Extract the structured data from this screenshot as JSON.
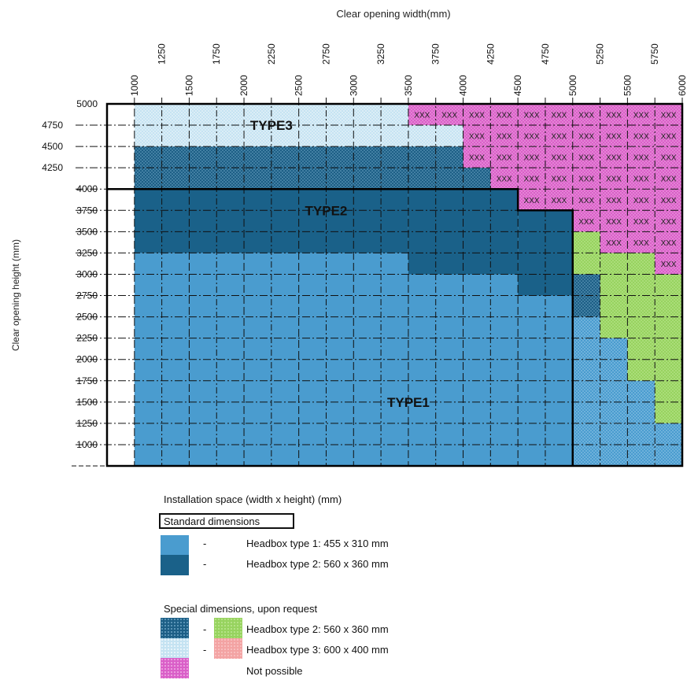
{
  "chart_data": {
    "type": "heatmap",
    "xlabel": "Clear opening width(mm)",
    "ylabel": "Clear opening height (mm)",
    "x_ticks_lower": [
      "1000",
      "1500",
      "2000",
      "2500",
      "3000",
      "3500",
      "4000",
      "4500",
      "5000",
      "5500",
      "6000"
    ],
    "x_ticks_upper": [
      "1250",
      "1750",
      "2250",
      "2750",
      "3250",
      "3750",
      "4250",
      "4750",
      "5250",
      "5750"
    ],
    "y_ticks_right": [
      "5000",
      "4000",
      "3750",
      "3500",
      "3250",
      "3000",
      "2750",
      "2500",
      "2250",
      "2000",
      "1750",
      "1500",
      "1250",
      "1000"
    ],
    "y_ticks_left": [
      "4750",
      "4500",
      "4250"
    ],
    "xlim": [
      750,
      6000
    ],
    "ylim": [
      750,
      5000
    ],
    "region_labels": [
      {
        "text": "TYPE3",
        "x": 2250,
        "y": 4750
      },
      {
        "text": "TYPE2",
        "x": 2750,
        "y": 3750
      },
      {
        "text": "TYPE1",
        "x": 3500,
        "y": 1500
      }
    ],
    "not_possible_marker": "XXX",
    "categories": [
      "std1",
      "std2",
      "sp2",
      "sp2g",
      "sp3",
      "np"
    ],
    "regions": [
      {
        "category": "std1",
        "x": [
          1000,
          5000
        ],
        "y": [
          750,
          3250
        ]
      },
      {
        "category": "std1",
        "x": [
          3500,
          4500
        ],
        "y": [
          3000,
          3250
        ]
      },
      {
        "category": "std2",
        "x": [
          1000,
          3500
        ],
        "y": [
          3250,
          4000
        ]
      },
      {
        "category": "std2",
        "x": [
          3500,
          4500
        ],
        "y": [
          3000,
          4000
        ]
      },
      {
        "category": "std2",
        "x": [
          4500,
          5000
        ],
        "y": [
          2750,
          3750
        ]
      },
      {
        "category": "std1",
        "x": [
          4500,
          5000
        ],
        "y": [
          2500,
          2750
        ]
      },
      {
        "category": "sp2",
        "x": [
          1000,
          4000
        ],
        "y": [
          4000,
          4500
        ]
      },
      {
        "category": "sp2",
        "x": [
          4000,
          4250
        ],
        "y": [
          4000,
          4250
        ]
      },
      {
        "category": "sp3",
        "x": [
          1000,
          3500
        ],
        "y": [
          4500,
          5000
        ]
      },
      {
        "category": "sp3",
        "x": [
          3500,
          4000
        ],
        "y": [
          4500,
          4750
        ]
      },
      {
        "category": "sp2",
        "x": [
          5000,
          5250
        ],
        "y": [
          2500,
          3000
        ]
      },
      {
        "category": "sp2g",
        "x": [
          5000,
          5250
        ],
        "y": [
          3000,
          3500
        ]
      },
      {
        "category": "sp2g",
        "x": [
          5250,
          5500
        ],
        "y": [
          2250,
          3250
        ]
      },
      {
        "category": "sp2g",
        "x": [
          5500,
          5750
        ],
        "y": [
          1750,
          3250
        ]
      },
      {
        "category": "sp2g",
        "x": [
          5750,
          6000
        ],
        "y": [
          1250,
          3000
        ]
      },
      {
        "category": "sp3",
        "x": [
          5000,
          5250
        ],
        "y": [
          750,
          2500
        ]
      },
      {
        "category": "sp3",
        "x": [
          5250,
          5500
        ],
        "y": [
          750,
          2250
        ]
      },
      {
        "category": "sp3",
        "x": [
          5500,
          5750
        ],
        "y": [
          750,
          1750
        ]
      },
      {
        "category": "sp3",
        "x": [
          5750,
          6000
        ],
        "y": [
          750,
          1250
        ]
      },
      {
        "category": "np",
        "x": [
          3500,
          4000
        ],
        "y": [
          4750,
          5000
        ]
      },
      {
        "category": "np",
        "x": [
          4000,
          4250
        ],
        "y": [
          4250,
          5000
        ]
      },
      {
        "category": "np",
        "x": [
          4250,
          4500
        ],
        "y": [
          4000,
          5000
        ]
      },
      {
        "category": "np",
        "x": [
          4500,
          5000
        ],
        "y": [
          3750,
          5000
        ]
      },
      {
        "category": "np",
        "x": [
          5000,
          5250
        ],
        "y": [
          3500,
          5000
        ]
      },
      {
        "category": "np",
        "x": [
          5250,
          5750
        ],
        "y": [
          3250,
          5000
        ]
      },
      {
        "category": "np",
        "x": [
          5750,
          6000
        ],
        "y": [
          3000,
          5000
        ]
      }
    ],
    "colors": {
      "std1": "#4a9ccf",
      "std2": "#1a6189",
      "sp2": "#1d5f86",
      "sp2g": "#97d35f",
      "sp3": "#c5e3f2",
      "sp3pink": "#f3a3a3",
      "np": "#da5fc8",
      "grid": "#111111"
    }
  },
  "legend": {
    "title": "Installation space (width x height) (mm)",
    "standard_title": "Standard dimensions",
    "special_title": "Special dimensions, upon request",
    "dash": "-",
    "items": {
      "type1": "Headbox type 1: 455 x 310 mm",
      "type2": "Headbox type 2: 560  x 360 mm",
      "sp_type2": "Headbox type 2: 560  x 360 mm",
      "sp_type3": "Headbox type 3: 600 x 400 mm",
      "not_possible": "Not possible"
    }
  }
}
